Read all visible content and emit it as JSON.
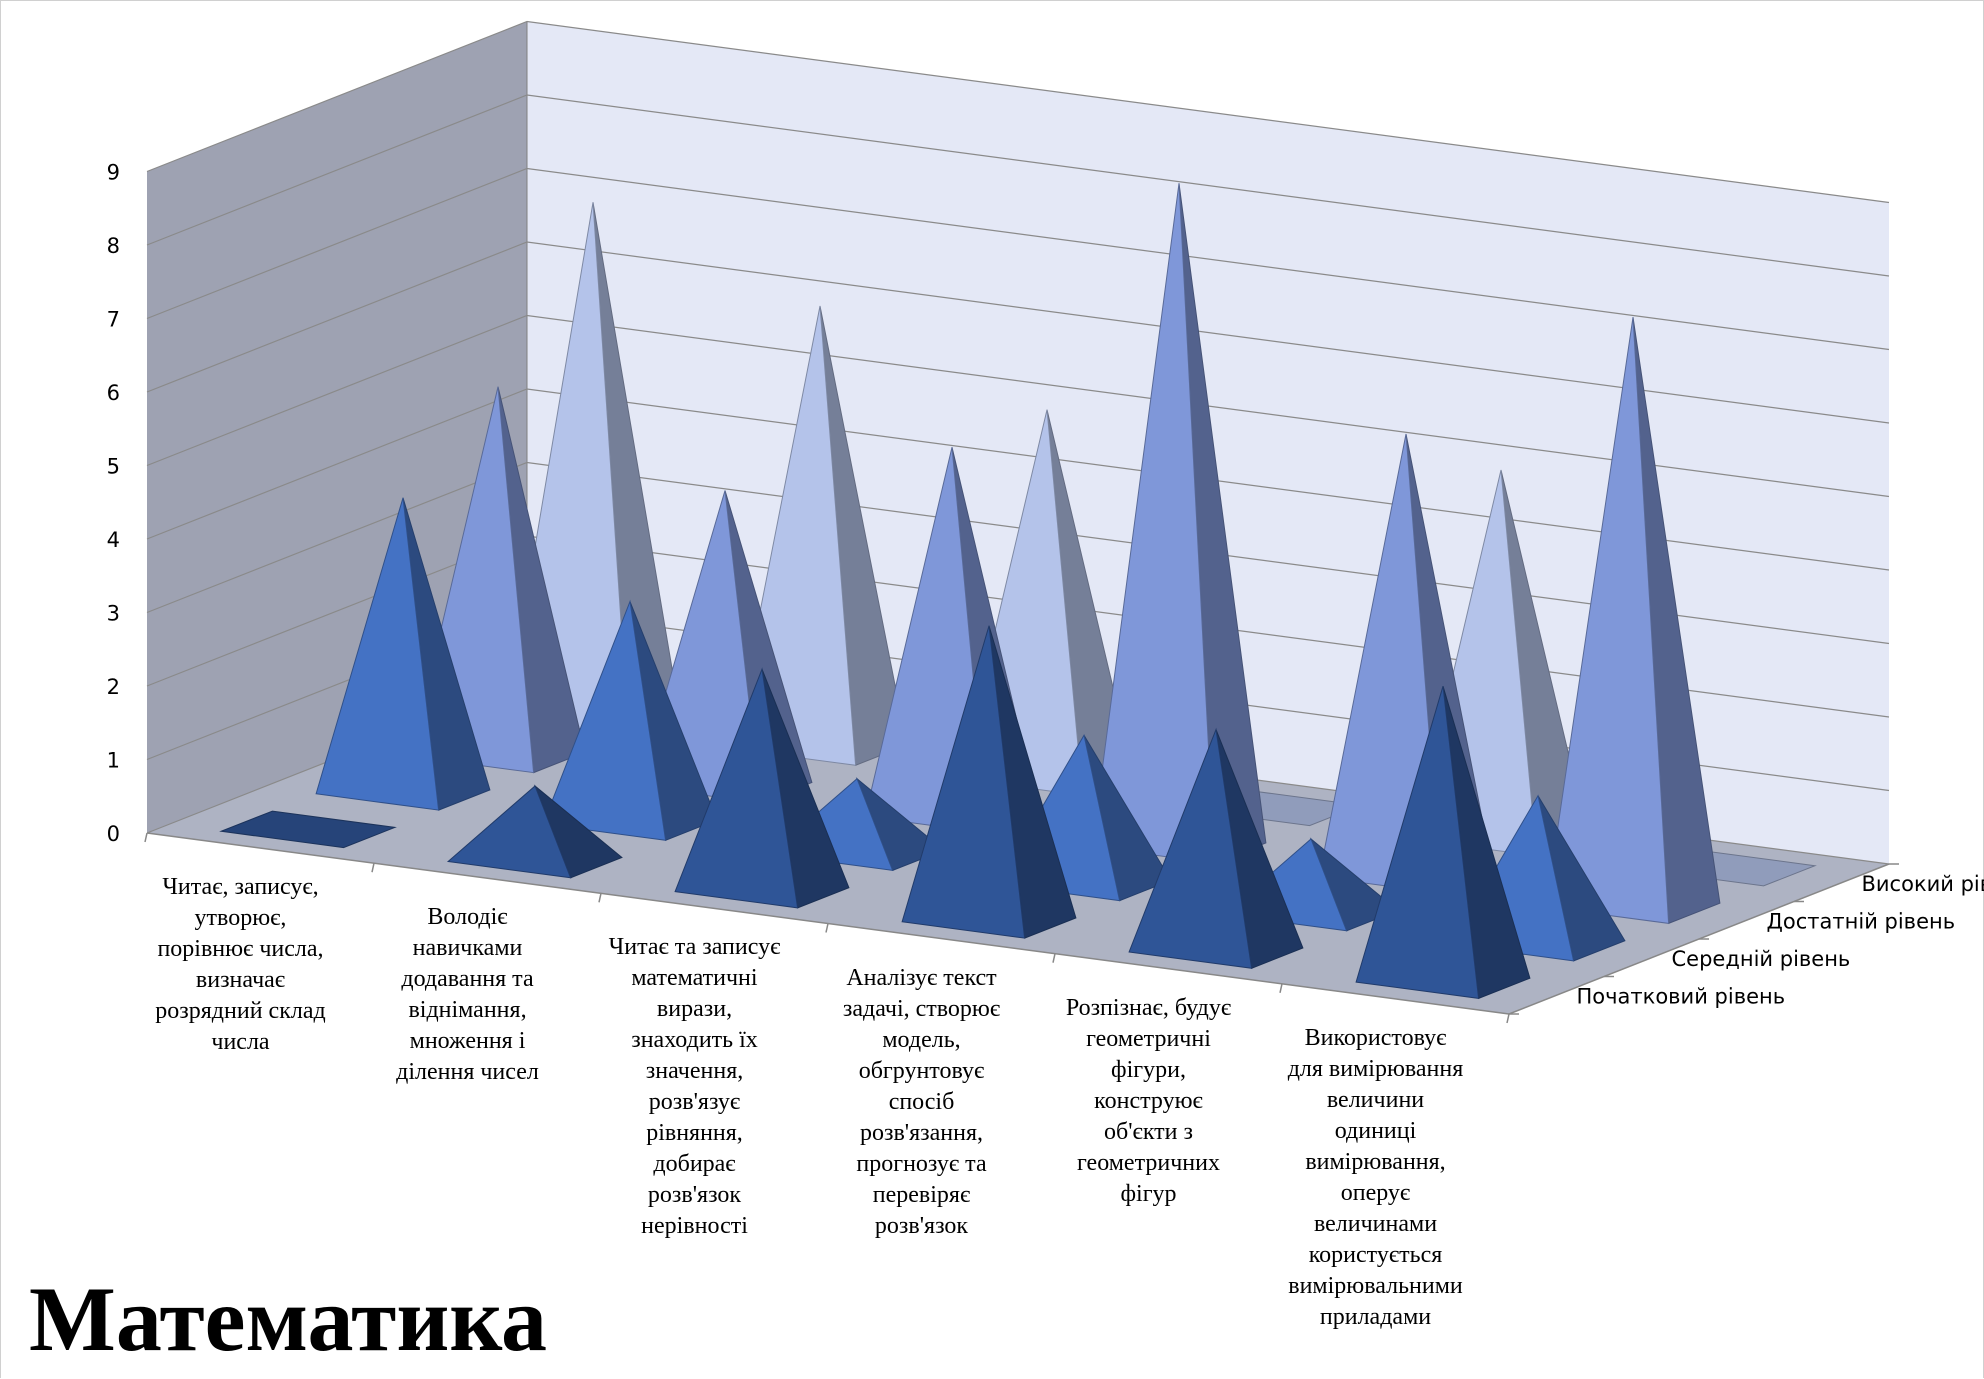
{
  "page": {
    "title": "Математика"
  },
  "chart_data": {
    "type": "bar",
    "subtype": "3d-pyramid",
    "grid": true,
    "ylim": [
      0,
      9
    ],
    "yticks": [
      "0",
      "1",
      "2",
      "3",
      "4",
      "5",
      "6",
      "7",
      "8",
      "9"
    ],
    "categories": [
      "Читає, записує, утворює, порівнює числа, визначає розрядний склад числа",
      "Володіє навичками додавання та віднімання, множення і ділення чисел",
      "Читає та записує математичні вирази, знаходить їх значення, розв'язує рівняння, добирає розв'язок нерівності",
      "Аналізує текст задачі, створює модель, обгрунтовує спосіб розв'язання, прогнозує та перевіряє розв'язок",
      "Розпізнає, будує геометричні фігури, конструює об'єкти з геометричних фігур",
      "Використовує для вимірювання величини одиниці вимірювання, оперує величинами користується вимірювальними приладами"
    ],
    "category_lines": [
      [
        "Читає, записує,",
        "утворює,",
        "порівнює числа,",
        "визначає",
        "розрядний склад",
        "числа"
      ],
      [
        "Володіє",
        "навичками",
        "додавання та",
        "віднімання,",
        "множення і",
        "ділення чисел"
      ],
      [
        "Читає та записує",
        "математичні",
        "вирази,",
        "знаходить їх",
        "значення,",
        "розв'язує",
        "рівняння,",
        "добирає",
        "розв'язок",
        "нерівності"
      ],
      [
        "Аналізує текст",
        "задачі, створює",
        "модель,",
        "обгрунтовує",
        "спосіб",
        "розв'язання,",
        "прогнозує та",
        "перевіряє",
        "розв'язок"
      ],
      [
        "Розпізнає, будує",
        "геометричні",
        "фігури,",
        "конструює",
        "об'єкти з",
        "геометричних",
        "фігур"
      ],
      [
        "Використовує",
        "для вимірювання",
        "величини",
        "одиниці",
        "вимірювання,",
        "оперує",
        "величинами",
        "користується",
        "вимірювальними",
        "приладами"
      ]
    ],
    "series": [
      {
        "name": "Початковий рівень",
        "values": [
          0,
          1,
          3,
          4,
          3,
          4
        ],
        "color": "#2f5597"
      },
      {
        "name": "Середній рівень",
        "values": [
          4,
          3,
          1,
          2,
          1,
          2
        ],
        "color": "#4472c4"
      },
      {
        "name": "Достатній рівень",
        "values": [
          5,
          4,
          5,
          9,
          6,
          8
        ],
        "color": "#7f97d9"
      },
      {
        "name": "Високий рівень",
        "values": [
          7,
          6,
          5,
          0,
          5,
          0
        ],
        "color": "#b4c3ea"
      }
    ],
    "depth_labels": [
      "Високий рівень",
      "Достатній рівень",
      "Середній рівень",
      "Початковий рівень"
    ],
    "colors": {
      "back_wall": "#e4e8f6",
      "side_wall": "#9ea2b2",
      "floor": "#aeb3c3",
      "grid": "#8a8a8a"
    }
  }
}
